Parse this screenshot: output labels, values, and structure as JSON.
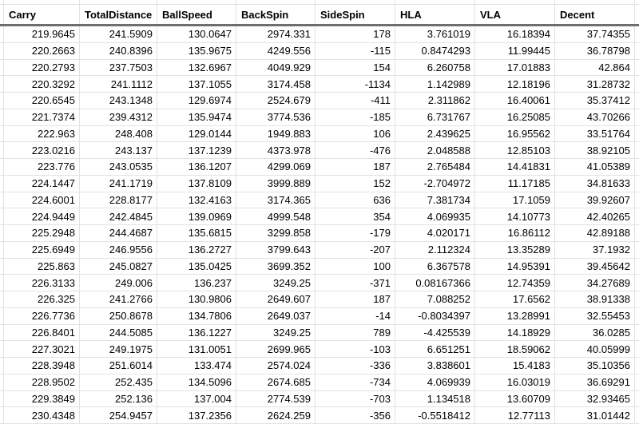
{
  "sheet": {
    "columns": [
      "Carry",
      "TotalDistance",
      "BallSpeed",
      "BackSpin",
      "SideSpin",
      "HLA",
      "VLA",
      "Decent"
    ],
    "rows": [
      [
        "219.9645",
        "241.5909",
        "130.0647",
        "2974.331",
        "178",
        "3.761019",
        "16.18394",
        "37.74355"
      ],
      [
        "220.2663",
        "240.8396",
        "135.9675",
        "4249.556",
        "-115",
        "0.8474293",
        "11.99445",
        "36.78798"
      ],
      [
        "220.2793",
        "237.7503",
        "132.6967",
        "4049.929",
        "154",
        "6.260758",
        "17.01883",
        "42.864"
      ],
      [
        "220.3292",
        "241.1112",
        "137.1055",
        "3174.458",
        "-1134",
        "1.142989",
        "12.18196",
        "31.28732"
      ],
      [
        "220.6545",
        "243.1348",
        "129.6974",
        "2524.679",
        "-411",
        "2.311862",
        "16.40061",
        "35.37412"
      ],
      [
        "221.7374",
        "239.4312",
        "135.9474",
        "3774.536",
        "-185",
        "6.731767",
        "16.25085",
        "43.70266"
      ],
      [
        "222.963",
        "248.408",
        "129.0144",
        "1949.883",
        "106",
        "2.439625",
        "16.95562",
        "33.51764"
      ],
      [
        "223.0216",
        "243.137",
        "137.1239",
        "4373.978",
        "-476",
        "2.048588",
        "12.85103",
        "38.92105"
      ],
      [
        "223.776",
        "243.0535",
        "136.1207",
        "4299.069",
        "187",
        "2.765484",
        "14.41831",
        "41.05389"
      ],
      [
        "224.1447",
        "241.1719",
        "137.8109",
        "3999.889",
        "152",
        "-2.704972",
        "11.17185",
        "34.81633"
      ],
      [
        "224.6001",
        "228.8177",
        "132.4163",
        "3174.365",
        "636",
        "7.381734",
        "17.1059",
        "39.92607"
      ],
      [
        "224.9449",
        "242.4845",
        "139.0969",
        "4999.548",
        "354",
        "4.069935",
        "14.10773",
        "42.40265"
      ],
      [
        "225.2948",
        "244.4687",
        "135.6815",
        "3299.858",
        "-179",
        "4.020171",
        "16.86112",
        "42.89188"
      ],
      [
        "225.6949",
        "246.9556",
        "136.2727",
        "3799.643",
        "-207",
        "2.112324",
        "13.35289",
        "37.1932"
      ],
      [
        "225.863",
        "245.0827",
        "135.0425",
        "3699.352",
        "100",
        "6.367578",
        "14.95391",
        "39.45642"
      ],
      [
        "226.3133",
        "249.006",
        "136.237",
        "3249.25",
        "-371",
        "0.08167366",
        "12.74359",
        "34.27689"
      ],
      [
        "226.325",
        "241.2766",
        "130.9806",
        "2649.607",
        "187",
        "7.088252",
        "17.6562",
        "38.91338"
      ],
      [
        "226.7736",
        "250.8678",
        "134.7806",
        "2649.037",
        "-14",
        "-0.8034397",
        "13.28991",
        "32.55453"
      ],
      [
        "226.8401",
        "244.5085",
        "136.1227",
        "3249.25",
        "789",
        "-4.425539",
        "14.18929",
        "36.0285"
      ],
      [
        "227.3021",
        "249.1975",
        "131.0051",
        "2699.965",
        "-103",
        "6.651251",
        "18.59062",
        "40.05999"
      ],
      [
        "228.3948",
        "251.6014",
        "133.474",
        "2574.024",
        "-336",
        "3.838601",
        "15.4183",
        "35.10356"
      ],
      [
        "228.9502",
        "252.435",
        "134.5096",
        "2674.685",
        "-734",
        "4.069939",
        "16.03019",
        "36.69291"
      ],
      [
        "229.3849",
        "252.136",
        "137.004",
        "2774.539",
        "-703",
        "1.134518",
        "13.60709",
        "32.93465"
      ],
      [
        "230.4348",
        "254.9457",
        "137.2356",
        "2624.259",
        "-356",
        "-0.5518412",
        "12.77113",
        "31.01442"
      ]
    ]
  },
  "colors": {
    "gridline": "#e2e2e2",
    "frozen_row_divider": "#6e6e6e",
    "text": "#000000",
    "background": "#ffffff"
  }
}
